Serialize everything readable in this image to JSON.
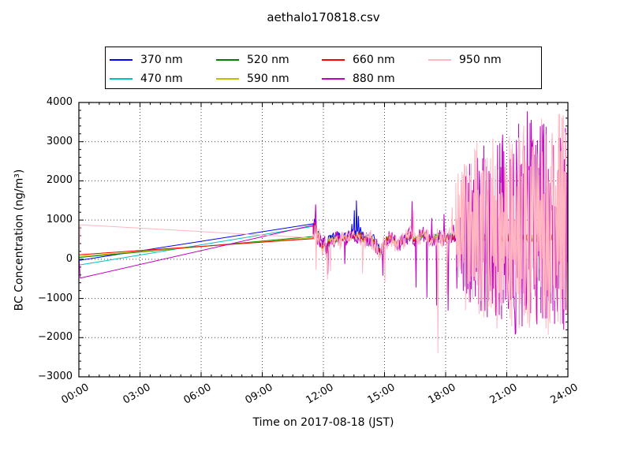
{
  "chart_data": {
    "type": "line",
    "title": "aethalo170818.csv",
    "xlabel": "Time on 2017-08-18 (JST)",
    "ylabel": "BC Concentration (ng/m³)",
    "xlim": [
      0,
      24
    ],
    "ylim": [
      -3000,
      4000
    ],
    "grid": "dotted",
    "legend_position": "top",
    "xticks": {
      "hours": [
        0,
        3,
        6,
        9,
        12,
        15,
        18,
        21,
        24
      ],
      "labels": [
        "00:00",
        "03:00",
        "06:00",
        "09:00",
        "12:00",
        "15:00",
        "18:00",
        "21:00",
        "24:00"
      ],
      "minor_step": 0.5
    },
    "yticks": {
      "values": [
        -3000,
        -2000,
        -1000,
        0,
        1000,
        2000,
        3000,
        4000
      ],
      "labels": [
        "−3000",
        "−2000",
        "−1000",
        "0",
        "1000",
        "2000",
        "3000",
        "4000"
      ],
      "minor_step": 200
    },
    "mid": [
      [
        11.5,
        680
      ],
      [
        11.56,
        900
      ],
      [
        11.62,
        840
      ],
      [
        11.7,
        560
      ],
      [
        11.78,
        640
      ],
      [
        11.86,
        420
      ],
      [
        11.95,
        300
      ],
      [
        12.05,
        480
      ],
      [
        12.15,
        200
      ],
      [
        12.25,
        430
      ],
      [
        12.4,
        520
      ],
      [
        12.55,
        470
      ],
      [
        12.7,
        540
      ],
      [
        12.85,
        470
      ],
      [
        13.0,
        560
      ],
      [
        13.15,
        520
      ],
      [
        13.3,
        560
      ],
      [
        13.45,
        620
      ],
      [
        13.6,
        560
      ],
      [
        13.75,
        640
      ],
      [
        13.9,
        540
      ],
      [
        14.05,
        480
      ],
      [
        14.2,
        560
      ],
      [
        14.35,
        500
      ],
      [
        14.5,
        430
      ],
      [
        14.65,
        300
      ],
      [
        14.8,
        180
      ],
      [
        14.95,
        380
      ],
      [
        15.1,
        480
      ],
      [
        15.3,
        540
      ],
      [
        15.5,
        440
      ],
      [
        15.7,
        360
      ],
      [
        15.9,
        480
      ],
      [
        16.1,
        560
      ],
      [
        16.3,
        620
      ],
      [
        16.5,
        470
      ],
      [
        16.7,
        560
      ],
      [
        16.9,
        650
      ],
      [
        17.1,
        560
      ],
      [
        17.3,
        490
      ],
      [
        17.5,
        560
      ],
      [
        17.7,
        600
      ],
      [
        17.9,
        500
      ],
      [
        18.1,
        560
      ],
      [
        18.3,
        600
      ],
      [
        18.5,
        530
      ],
      [
        18.75,
        560
      ],
      [
        19.25,
        540
      ],
      [
        19.75,
        560
      ],
      [
        20.5,
        530
      ],
      [
        21.25,
        560
      ],
      [
        22.0,
        540
      ],
      [
        22.75,
        560
      ],
      [
        23.5,
        545
      ],
      [
        24.0,
        620
      ]
    ],
    "series": [
      {
        "name": "370 nm",
        "color": "#0000ff",
        "seed": 11,
        "pre": [
          [
            0,
            -30
          ],
          [
            11.5,
            905
          ]
        ],
        "noisy": {
          "t0": 11.5,
          "t1": 24,
          "dt": 0.03,
          "amp": 100
        },
        "offs": [
          [
            11.5,
            90
          ],
          [
            14.5,
            90
          ],
          [
            14.8,
            0
          ],
          [
            24,
            0
          ]
        ],
        "spikes": [
          [
            13.4,
            900
          ],
          [
            13.52,
            1250
          ],
          [
            13.62,
            1500
          ],
          [
            13.72,
            1100
          ],
          [
            13.82,
            820
          ]
        ]
      },
      {
        "name": "470 nm",
        "color": "#00bfbf",
        "seed": 22,
        "pre": [
          [
            0,
            -150
          ],
          [
            11.5,
            840
          ]
        ],
        "noisy": {
          "t0": 11.5,
          "t1": 24,
          "dt": 0.03,
          "amp": 100
        },
        "spikes": [
          [
            20.3,
            880
          ],
          [
            22.35,
            930
          ],
          [
            22.9,
            1050
          ]
        ]
      },
      {
        "name": "520 nm",
        "color": "#007f00",
        "seed": 33,
        "pre": [
          [
            0,
            45
          ],
          [
            11.5,
            580
          ]
        ],
        "noisy": {
          "t0": 11.5,
          "t1": 24,
          "dt": 0.03,
          "amp": 90
        }
      },
      {
        "name": "590 nm",
        "color": "#bfbf00",
        "seed": 44,
        "pre": [
          [
            0,
            75
          ],
          [
            11.5,
            550
          ]
        ],
        "noisy": {
          "t0": 11.5,
          "t1": 24,
          "dt": 0.03,
          "amp": 90
        }
      },
      {
        "name": "660 nm",
        "color": "#ff0000",
        "seed": 55,
        "pre": [
          [
            0,
            115
          ],
          [
            11.5,
            525
          ]
        ],
        "noisy": {
          "t0": 11.5,
          "t1": 24,
          "dt": 0.03,
          "amp": 90
        }
      },
      {
        "name": "880 nm",
        "color": "#bf00bf",
        "seed": 66,
        "pre": [
          [
            0,
            85
          ],
          [
            0.07,
            -480
          ],
          [
            11.5,
            870
          ]
        ],
        "noisy": {
          "t0": 11.5,
          "t1": 18.7,
          "dt": 0.03,
          "amp": 200
        },
        "spikes": [
          [
            11.62,
            1400
          ],
          [
            12.22,
            -380
          ],
          [
            13.05,
            -120
          ],
          [
            14.92,
            -420
          ],
          [
            16.35,
            1480
          ],
          [
            16.55,
            -720
          ],
          [
            17.08,
            -980
          ],
          [
            17.32,
            1050
          ],
          [
            17.56,
            -1180
          ],
          [
            17.92,
            1150
          ],
          [
            18.12,
            -1310
          ],
          [
            18.38,
            880
          ],
          [
            18.55,
            -750
          ]
        ],
        "wild": {
          "t0": 18.7,
          "dt": 0.028,
          "base": 520,
          "startDir": 1,
          "envPos": [
            [
              18.7,
              1000
            ],
            [
              19.0,
              1650
            ],
            [
              19.3,
              2800
            ],
            [
              19.7,
              2000
            ],
            [
              20.0,
              3380
            ],
            [
              20.4,
              2150
            ],
            [
              20.8,
              3420
            ],
            [
              21.2,
              2350
            ],
            [
              21.6,
              3000
            ],
            [
              22.0,
              3580
            ],
            [
              22.4,
              2600
            ],
            [
              22.8,
              3300
            ],
            [
              23.2,
              2400
            ],
            [
              23.6,
              3230
            ],
            [
              24.0,
              3300
            ]
          ],
          "envNeg": [
            [
              18.7,
              800
            ],
            [
              19.1,
              2100
            ],
            [
              19.5,
              1450
            ],
            [
              19.9,
              2300
            ],
            [
              20.3,
              1650
            ],
            [
              20.7,
              2530
            ],
            [
              21.1,
              1850
            ],
            [
              21.5,
              2600
            ],
            [
              21.9,
              2050
            ],
            [
              22.3,
              2640
            ],
            [
              22.7,
              1950
            ],
            [
              23.1,
              2520
            ],
            [
              23.5,
              2120
            ],
            [
              23.9,
              2570
            ],
            [
              24.0,
              2000
            ]
          ]
        }
      },
      {
        "name": "950 nm",
        "color": "#ffb6c1",
        "seed": 77,
        "pre": [
          [
            0,
            130
          ],
          [
            0.07,
            880
          ],
          [
            11.45,
            545
          ]
        ],
        "noisy": {
          "t0": 11.5,
          "t1": 18.5,
          "dt": 0.03,
          "amp": 240
        },
        "spikes": [
          [
            11.55,
            500
          ],
          [
            11.64,
            -270
          ],
          [
            12.2,
            -520
          ],
          [
            12.35,
            -300
          ],
          [
            13.92,
            -360
          ],
          [
            15.02,
            -600
          ],
          [
            16.42,
            1250
          ],
          [
            17.62,
            -2400
          ],
          [
            18.06,
            -900
          ],
          [
            18.32,
            1320
          ]
        ],
        "wild": {
          "t0": 18.5,
          "dt": 0.028,
          "base": 520,
          "startDir": 1,
          "envPos": [
            [
              18.5,
              1500
            ],
            [
              18.7,
              2850
            ],
            [
              19.1,
              1700
            ],
            [
              19.5,
              2600
            ],
            [
              19.9,
              2100
            ],
            [
              20.3,
              3350
            ],
            [
              20.7,
              2300
            ],
            [
              21.1,
              2950
            ],
            [
              21.5,
              2500
            ],
            [
              21.9,
              3550
            ],
            [
              22.3,
              2700
            ],
            [
              22.7,
              3200
            ],
            [
              23.1,
              2450
            ],
            [
              23.5,
              3250
            ],
            [
              24.0,
              3150
            ]
          ],
          "envNeg": [
            [
              18.5,
              900
            ],
            [
              19.0,
              2050
            ],
            [
              19.4,
              1500
            ],
            [
              19.8,
              2250
            ],
            [
              20.2,
              1700
            ],
            [
              20.6,
              2500
            ],
            [
              21.0,
              1900
            ],
            [
              21.4,
              2570
            ],
            [
              21.8,
              2100
            ],
            [
              22.2,
              2620
            ],
            [
              22.6,
              2000
            ],
            [
              23.0,
              2480
            ],
            [
              23.4,
              2150
            ],
            [
              23.8,
              2550
            ],
            [
              24.0,
              1800
            ]
          ]
        }
      }
    ]
  }
}
